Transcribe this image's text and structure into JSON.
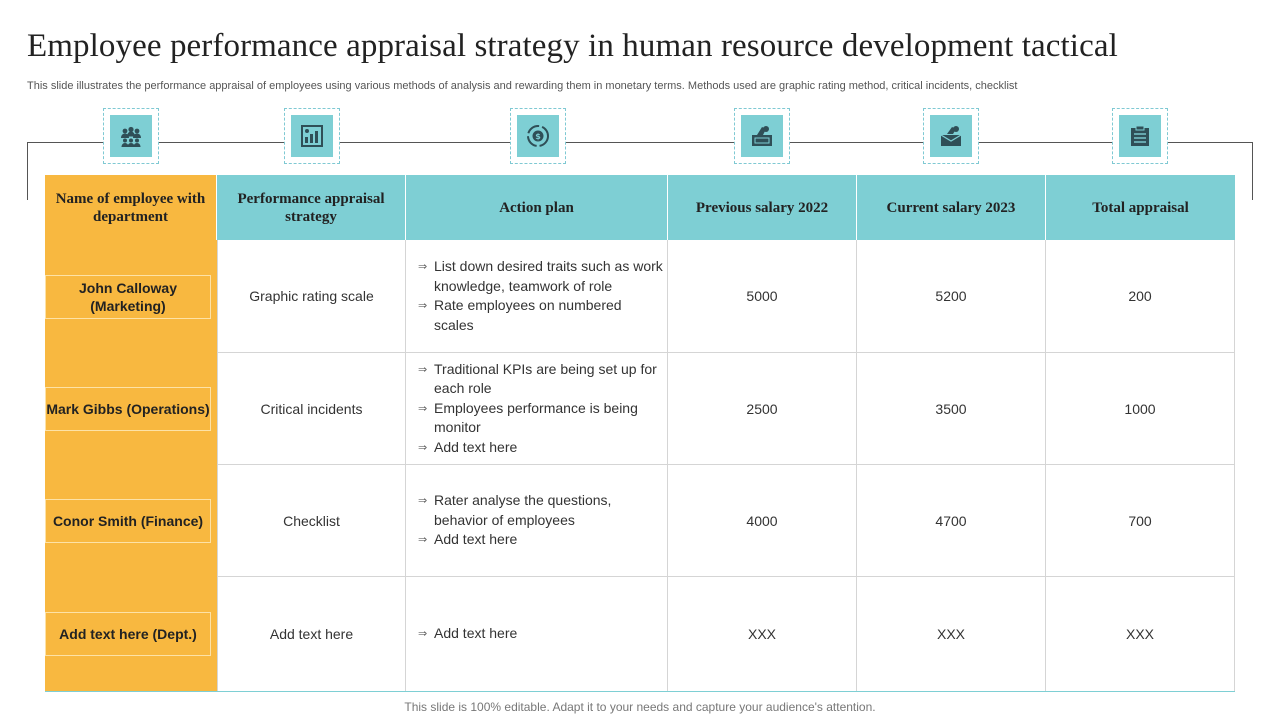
{
  "title": "Employee performance appraisal strategy in human resource development tactical",
  "subtitle": "This slide illustrates the performance appraisal of employees using various methods of analysis and rewarding them in monetary terms. Methods used are graphic rating method, critical incidents, checklist",
  "icons": [
    "team-icon",
    "chart-report-icon",
    "money-cycle-icon",
    "money-hand-icon",
    "money-hand-envelope-icon",
    "checklist-icon"
  ],
  "colors": {
    "teal": "#7ecfd4",
    "orange": "#f8b840"
  },
  "headers": {
    "name": "Name of employee with department",
    "strategy": "Performance appraisal strategy",
    "action": "Action plan",
    "prev": "Previous salary 2022",
    "curr": "Current salary 2023",
    "total": "Total appraisal"
  },
  "rows": [
    {
      "name": "John Calloway (Marketing)",
      "strategy": "Graphic rating scale",
      "actions": [
        "List down desired traits such as work knowledge, teamwork of role",
        "Rate employees on numbered scales"
      ],
      "prev": "5000",
      "curr": "5200",
      "total": "200"
    },
    {
      "name": "Mark Gibbs (Operations)",
      "strategy": "Critical incidents",
      "actions": [
        "Traditional KPIs are being set up for each role",
        "Employees performance is being monitor",
        "Add text here"
      ],
      "prev": "2500",
      "curr": "3500",
      "total": "1000"
    },
    {
      "name": "Conor Smith (Finance)",
      "strategy": "Checklist",
      "actions": [
        "Rater analyse the questions, behavior of employees",
        "Add text here"
      ],
      "prev": "4000",
      "curr": "4700",
      "total": "700"
    },
    {
      "name": "Add text here (Dept.)",
      "strategy": "Add text here",
      "actions": [
        "Add text here"
      ],
      "prev": "XXX",
      "curr": "XXX",
      "total": "XXX"
    }
  ],
  "footer": "This slide is 100% editable. Adapt it to your needs and capture your audience's attention."
}
